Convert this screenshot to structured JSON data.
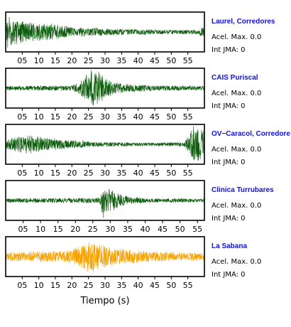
{
  "colors": {
    "station_name": "#1010e0",
    "trace_default": "#0d5c0d",
    "trace_highlight": "#f5a300",
    "frame": "#000000"
  },
  "chart_data": {
    "type": "line",
    "xlabel": "Tiempo (s)",
    "panels": [
      {
        "station": "Laurel, Corredores",
        "acel_label": "Acel. Max. 0.0",
        "jma_label": "Int JMA: 0",
        "color": "#0d5c0d",
        "xlim": [
          0,
          60
        ],
        "ticks": [
          "05",
          "10",
          "15",
          "20",
          "25",
          "30",
          "35",
          "40",
          "45",
          "50",
          "55"
        ],
        "tick_values": [
          5,
          10,
          15,
          20,
          25,
          30,
          35,
          40,
          45,
          50,
          55
        ],
        "envelope": [
          [
            0,
            0.05
          ],
          [
            0.5,
            1.0
          ],
          [
            3,
            0.75
          ],
          [
            6,
            0.6
          ],
          [
            10,
            0.5
          ],
          [
            15,
            0.42
          ],
          [
            20,
            0.3
          ],
          [
            30,
            0.2
          ],
          [
            40,
            0.15
          ],
          [
            50,
            0.12
          ],
          [
            58,
            0.12
          ],
          [
            59,
            0.25
          ]
        ]
      },
      {
        "station": "CAIS Puriscal",
        "acel_label": "Acel. Max. 0.0",
        "jma_label": "Int JMA: 0",
        "color": "#0d5c0d",
        "xlim": [
          0,
          60
        ],
        "ticks": [
          "05",
          "10",
          "15",
          "20",
          "25",
          "30",
          "35",
          "40",
          "45",
          "50",
          "55"
        ],
        "tick_values": [
          5,
          10,
          15,
          20,
          25,
          30,
          35,
          40,
          45,
          50,
          55
        ],
        "envelope": [
          [
            0,
            0.12
          ],
          [
            20,
            0.14
          ],
          [
            22.5,
            0.35
          ],
          [
            24.5,
            0.9
          ],
          [
            26,
            1.0
          ],
          [
            28,
            0.95
          ],
          [
            29.5,
            0.7
          ],
          [
            32,
            0.4
          ],
          [
            35,
            0.25
          ],
          [
            45,
            0.15
          ],
          [
            60,
            0.12
          ]
        ]
      },
      {
        "station": "OV−Caracol, Corredore",
        "acel_label": "Acel. Max. 0.0",
        "jma_label": "Int JMA: 0",
        "color": "#0d5c0d",
        "xlim": [
          0,
          60
        ],
        "ticks": [
          "05",
          "10",
          "15",
          "20",
          "25",
          "30",
          "35",
          "40",
          "45",
          "50",
          "55"
        ],
        "tick_values": [
          5,
          10,
          15,
          20,
          25,
          30,
          35,
          40,
          45,
          50,
          55
        ],
        "envelope": [
          [
            0,
            0.2
          ],
          [
            2,
            0.45
          ],
          [
            7,
            0.5
          ],
          [
            12,
            0.38
          ],
          [
            18,
            0.25
          ],
          [
            30,
            0.12
          ],
          [
            45,
            0.1
          ],
          [
            54,
            0.12
          ],
          [
            55.5,
            0.6
          ],
          [
            56.5,
            1.0
          ],
          [
            58,
            0.95
          ],
          [
            60,
            0.8
          ]
        ]
      },
      {
        "station": "Clinica Turrubares",
        "acel_label": "Acel. Max. 0.0",
        "jma_label": "Int JMA: 0",
        "color": "#0d5c0d",
        "xlim": [
          0,
          57
        ],
        "ticks": [
          "05",
          "10",
          "15",
          "20",
          "25",
          "30",
          "35",
          "40",
          "45",
          "50",
          "55"
        ],
        "tick_values": [
          5,
          10,
          15,
          20,
          25,
          30,
          35,
          40,
          45,
          50,
          55
        ],
        "envelope": [
          [
            0,
            0.12
          ],
          [
            26,
            0.14
          ],
          [
            27.2,
            0.25
          ],
          [
            27.8,
            1.0
          ],
          [
            29,
            0.7
          ],
          [
            31,
            0.55
          ],
          [
            33,
            0.35
          ],
          [
            36,
            0.2
          ],
          [
            42,
            0.12
          ],
          [
            57,
            0.1
          ]
        ]
      },
      {
        "station": "La Sabana",
        "acel_label": "Acel. Max. 0.0",
        "jma_label": "Int JMA: 0",
        "color": "#f5a300",
        "xlim": [
          0,
          60
        ],
        "ticks": [
          "05",
          "10",
          "15",
          "20",
          "25",
          "30",
          "35",
          "40",
          "45",
          "50",
          "55"
        ],
        "tick_values": [
          5,
          10,
          15,
          20,
          25,
          30,
          35,
          40,
          45,
          50,
          55
        ],
        "envelope": [
          [
            0,
            0.25
          ],
          [
            10,
            0.3
          ],
          [
            19,
            0.35
          ],
          [
            22,
            0.55
          ],
          [
            24.5,
            0.8
          ],
          [
            25.5,
            1.0
          ],
          [
            27,
            0.8
          ],
          [
            30,
            0.6
          ],
          [
            34,
            0.45
          ],
          [
            40,
            0.35
          ],
          [
            50,
            0.25
          ],
          [
            60,
            0.22
          ]
        ]
      }
    ]
  }
}
